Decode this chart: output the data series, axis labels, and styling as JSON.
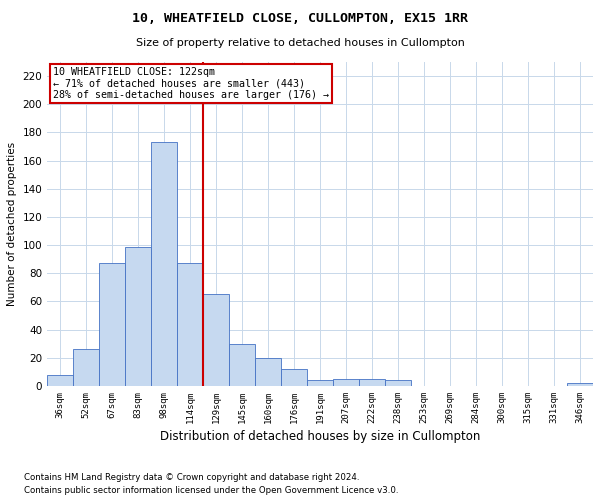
{
  "title": "10, WHEATFIELD CLOSE, CULLOMPTON, EX15 1RR",
  "subtitle": "Size of property relative to detached houses in Cullompton",
  "xlabel": "Distribution of detached houses by size in Cullompton",
  "ylabel": "Number of detached properties",
  "bar_labels": [
    "36sqm",
    "52sqm",
    "67sqm",
    "83sqm",
    "98sqm",
    "114sqm",
    "129sqm",
    "145sqm",
    "160sqm",
    "176sqm",
    "191sqm",
    "207sqm",
    "222sqm",
    "238sqm",
    "253sqm",
    "269sqm",
    "284sqm",
    "300sqm",
    "315sqm",
    "331sqm",
    "346sqm"
  ],
  "bar_values": [
    8,
    26,
    87,
    99,
    173,
    87,
    65,
    30,
    20,
    12,
    4,
    5,
    5,
    4,
    0,
    0,
    0,
    0,
    0,
    0,
    2
  ],
  "bar_color": "#c6d9f0",
  "bar_edge_color": "#4472c4",
  "vline_x": 5.5,
  "vline_color": "#cc0000",
  "annotation_text": "10 WHEATFIELD CLOSE: 122sqm\n← 71% of detached houses are smaller (443)\n28% of semi-detached houses are larger (176) →",
  "annotation_box_color": "#cc0000",
  "ylim": [
    0,
    230
  ],
  "yticks": [
    0,
    20,
    40,
    60,
    80,
    100,
    120,
    140,
    160,
    180,
    200,
    220
  ],
  "footnote1": "Contains HM Land Registry data © Crown copyright and database right 2024.",
  "footnote2": "Contains public sector information licensed under the Open Government Licence v3.0.",
  "bg_color": "#ffffff",
  "grid_color": "#c8d8ea"
}
